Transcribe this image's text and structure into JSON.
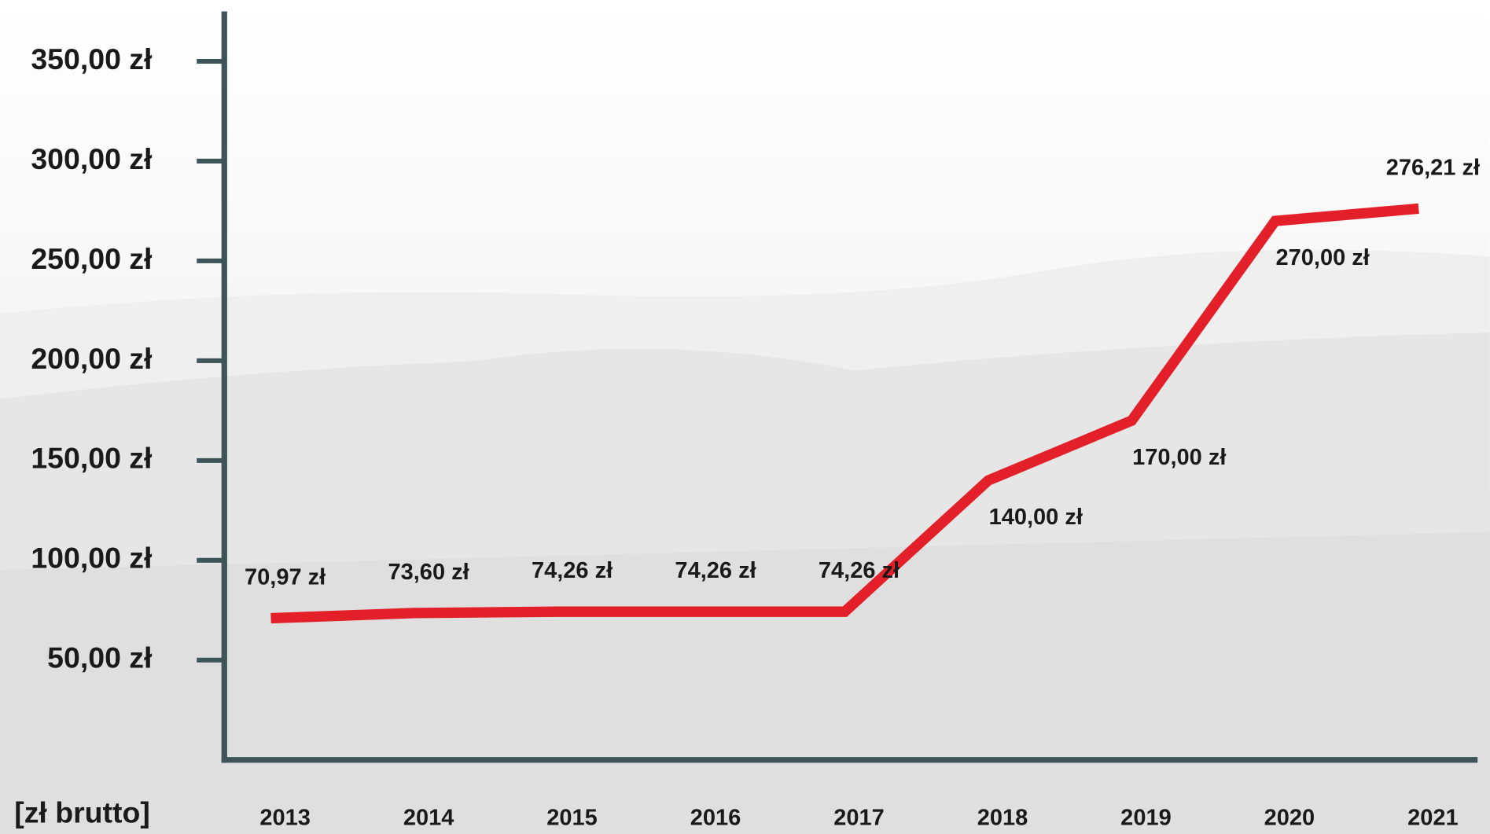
{
  "chart_data": {
    "type": "line",
    "y_axis_label": "[zł brutto]",
    "categories": [
      "2013",
      "2014",
      "2015",
      "2016",
      "2017",
      "2018",
      "2019",
      "2020",
      "2021"
    ],
    "series": [
      {
        "color": "#e3202a",
        "values": [
          70.97,
          73.6,
          74.26,
          74.26,
          74.26,
          140,
          170,
          270,
          276.21
        ],
        "value_labels": [
          "70,97 zł",
          "73,60 zł",
          "74,26 zł",
          "74,26 zł",
          "74,26 zł",
          "140,00 zł",
          "170,00 zł",
          "270,00 zł",
          "276,21 zł"
        ]
      }
    ],
    "ylim": [
      0,
      375
    ],
    "yticks": [
      {
        "value": 50,
        "label": "50,00 zł"
      },
      {
        "value": 100,
        "label": "100,00 zł"
      },
      {
        "value": 150,
        "label": "150,00 zł"
      },
      {
        "value": 200,
        "label": "200,00 zł"
      },
      {
        "value": 250,
        "label": "250,00 zł"
      },
      {
        "value": 300,
        "label": "300,00 zł"
      },
      {
        "value": 350,
        "label": "350,00 zł"
      }
    ],
    "grid": false
  }
}
